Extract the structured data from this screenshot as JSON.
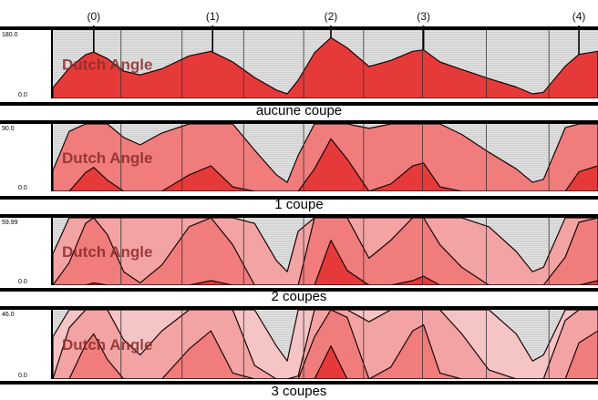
{
  "chart_data": {
    "type": "area",
    "title": "",
    "markers": [
      {
        "label": "(0)",
        "x": 0.075
      },
      {
        "label": "(1)",
        "x": 0.293
      },
      {
        "label": "(2)",
        "x": 0.51
      },
      {
        "label": "(3)",
        "x": 0.68
      },
      {
        "label": "(4)",
        "x": 0.965
      }
    ],
    "curve": [
      [
        0.0,
        28
      ],
      [
        0.03,
        80
      ],
      [
        0.06,
        115
      ],
      [
        0.075,
        122
      ],
      [
        0.1,
        105
      ],
      [
        0.13,
        72
      ],
      [
        0.16,
        62
      ],
      [
        0.2,
        78
      ],
      [
        0.25,
        112
      ],
      [
        0.29,
        124
      ],
      [
        0.33,
        96
      ],
      [
        0.37,
        55
      ],
      [
        0.41,
        22
      ],
      [
        0.43,
        12
      ],
      [
        0.45,
        48
      ],
      [
        0.48,
        120
      ],
      [
        0.51,
        160
      ],
      [
        0.54,
        133
      ],
      [
        0.58,
        84
      ],
      [
        0.62,
        100
      ],
      [
        0.66,
        124
      ],
      [
        0.68,
        128
      ],
      [
        0.71,
        96
      ],
      [
        0.75,
        76
      ],
      [
        0.8,
        52
      ],
      [
        0.85,
        30
      ],
      [
        0.88,
        12
      ],
      [
        0.9,
        16
      ],
      [
        0.94,
        85
      ],
      [
        0.965,
        116
      ],
      [
        1.0,
        124
      ]
    ],
    "panels": [
      {
        "label": "aucune coupe",
        "ymin_label": "0.0",
        "ymax_label": "180.0",
        "ymax": 180.0,
        "bands": 1
      },
      {
        "label": "1 coupe",
        "ymin_label": "0.0",
        "ymax_label": "90.0",
        "ymax": 90.0,
        "bands": 2
      },
      {
        "label": "2 coupes",
        "ymin_label": "0.0",
        "ymax_label": "59.99",
        "ymax": 59.99,
        "bands": 3
      },
      {
        "label": "3 coupes",
        "ymin_label": "0.0",
        "ymax_label": "46.0",
        "ymax": 46.0,
        "bands": 4
      }
    ],
    "watermark": "Dutch Angle",
    "colors": {
      "band_levels": [
        "#e63a3a",
        "#f07c7c",
        "#f3a3a3",
        "#f5c4c4",
        "#f7d8d8"
      ],
      "darkest": "#e81c1c",
      "outline": "#1a0505",
      "background": "#d8d8d8",
      "watermark": "#8b2a2a"
    }
  }
}
